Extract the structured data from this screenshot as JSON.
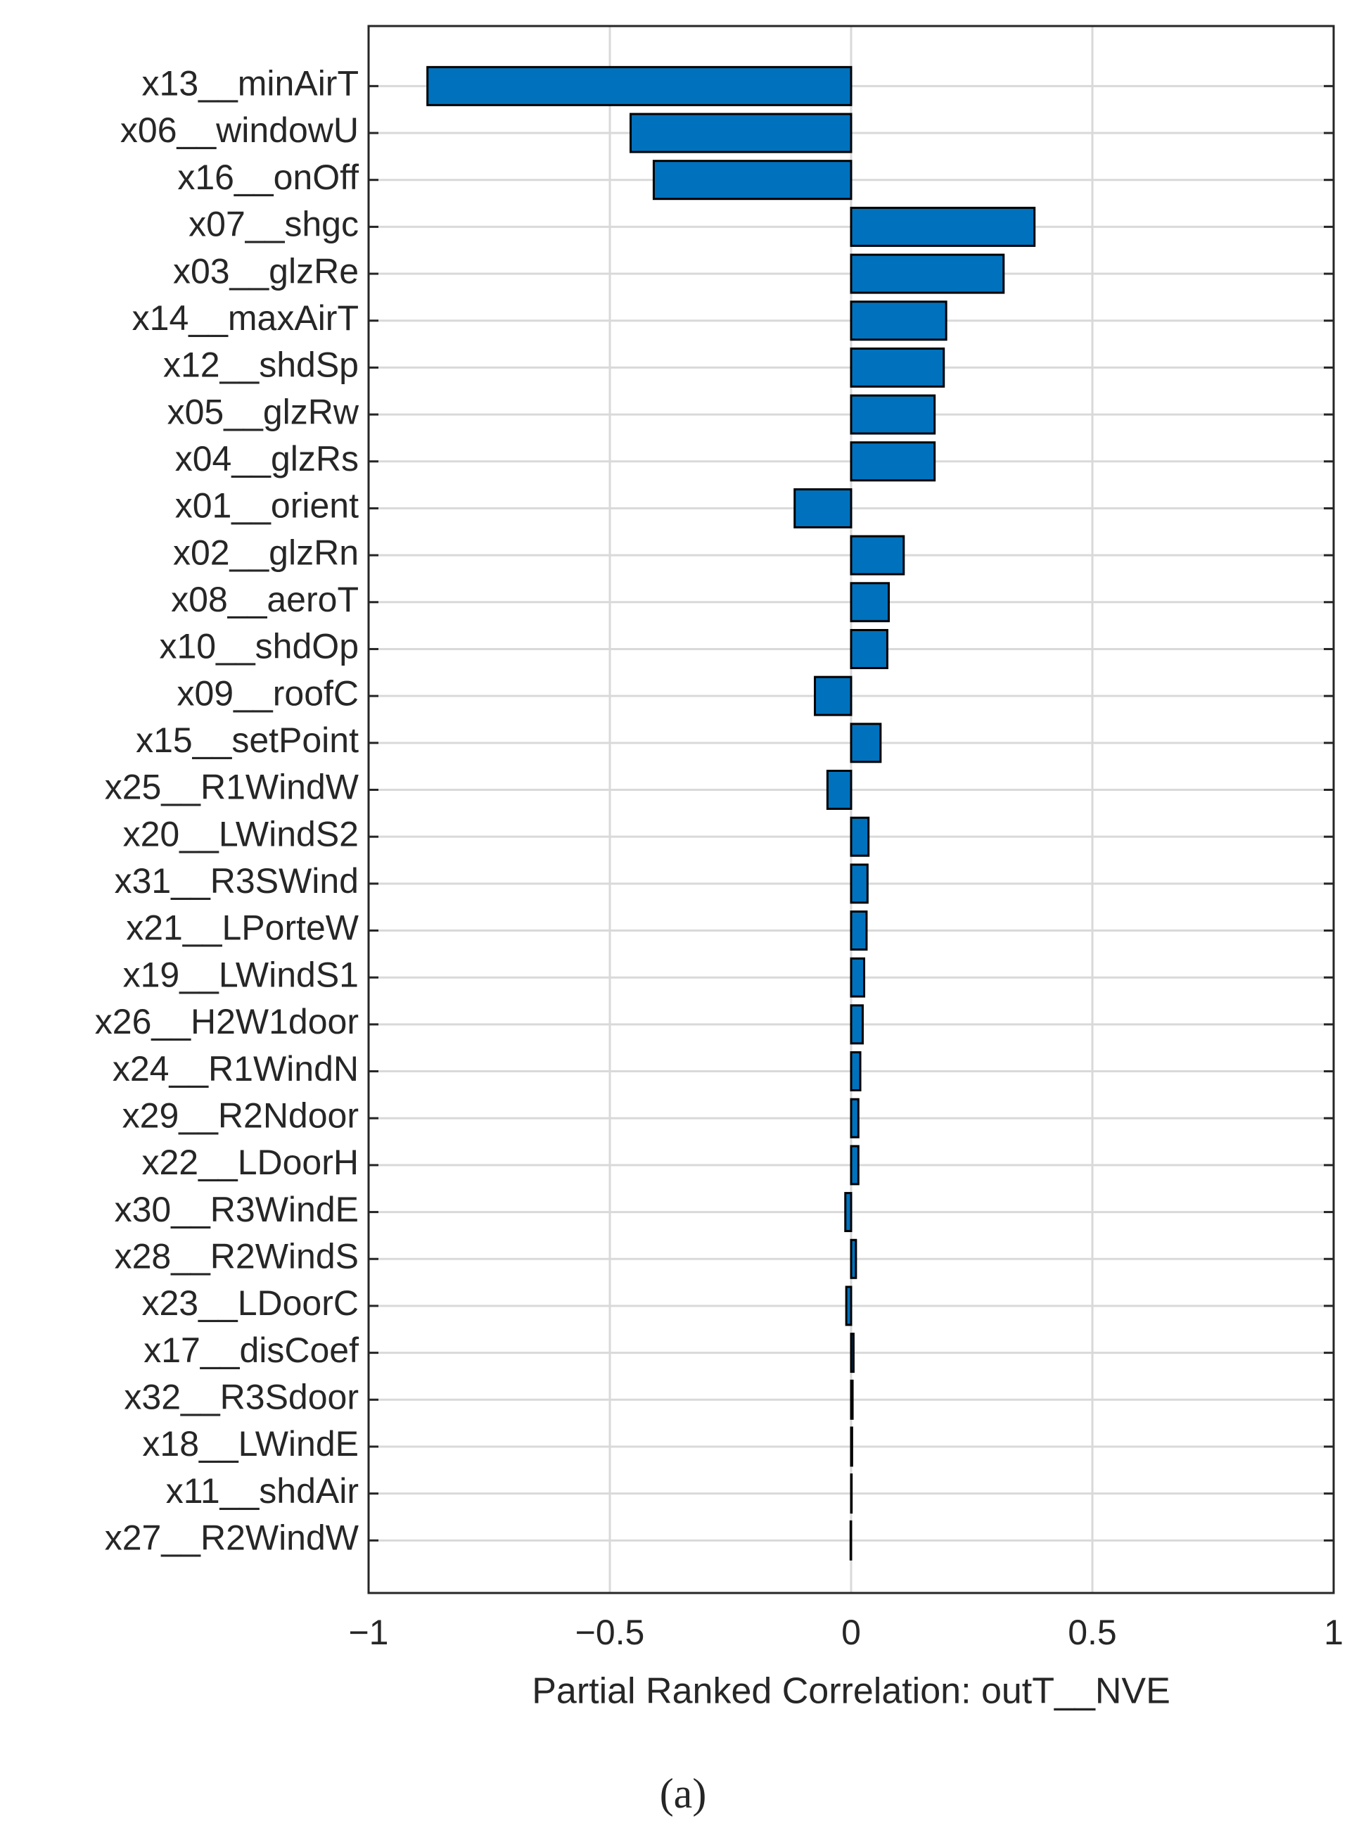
{
  "chart_data": {
    "type": "barh",
    "xlabel": "Partial Ranked Correlation: outT__NVE",
    "caption": "(a)",
    "categories": [
      "x13__minAirT",
      "x06__windowU",
      "x16__onOff",
      "x07__shgc",
      "x03__glzRe",
      "x14__maxAirT",
      "x12__shdSp",
      "x05__glzRw",
      "x04__glzRs",
      "x01__orient",
      "x02__glzRn",
      "x08__aeroT",
      "x10__shdOp",
      "x09__roofC",
      "x15__setPoint",
      "x25__R1WindW",
      "x20__LWindS2",
      "x31__R3SWind",
      "x21__LPorteW",
      "x19__LWindS1",
      "x26__H2W1door",
      "x24__R1WindN",
      "x29__R2Ndoor",
      "x22__LDoorH",
      "x30__R3WindE",
      "x28__R2WindS",
      "x23__LDoorC",
      "x17__disCoef",
      "x32__R3Sdoor",
      "x18__LWindE",
      "x11__shdAir",
      "x27__R2WindW"
    ],
    "values": [
      -0.878,
      -0.457,
      -0.409,
      0.38,
      0.316,
      0.197,
      0.192,
      0.173,
      0.173,
      -0.117,
      0.109,
      0.078,
      0.075,
      -0.075,
      0.061,
      -0.049,
      0.036,
      0.034,
      0.032,
      0.027,
      0.024,
      0.019,
      0.015,
      0.015,
      -0.012,
      0.01,
      -0.01,
      0.005,
      0.003,
      0.002,
      0.001,
      -0.001
    ],
    "color": "#0072bd",
    "xlim": [
      -1,
      1
    ],
    "xticks": [
      {
        "value": -1,
        "label": "−1"
      },
      {
        "value": -0.5,
        "label": "−0.5"
      },
      0,
      0.5,
      1
    ],
    "grid": true
  }
}
